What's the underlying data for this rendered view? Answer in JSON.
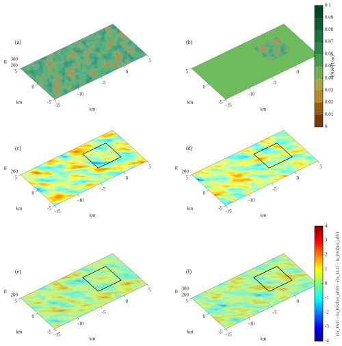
{
  "panels": [
    {
      "label": "(a)",
      "z_label": "m",
      "z_ticks": [
        "300",
        "200"
      ],
      "x_label": "km",
      "x_ticks": [
        "-15",
        "-10",
        "-5",
        "0",
        "5"
      ],
      "y_label": "km",
      "y_ticks": [
        "5",
        "0",
        "-5"
      ]
    },
    {
      "label": "(b)",
      "x_label": "km",
      "x_ticks": [
        "-15",
        "-10",
        "-5",
        "0",
        "5"
      ],
      "y_label": "km",
      "y_ticks": [
        "5",
        "0",
        "-5"
      ]
    },
    {
      "label": "(c)",
      "z_label": "m",
      "z_ticks": [
        "200"
      ],
      "x_label": "km",
      "x_ticks": [
        "-15",
        "-10",
        "-5",
        "0",
        "5"
      ],
      "y_label": "km",
      "y_ticks": [
        "5",
        "0",
        "-5"
      ]
    },
    {
      "label": "(d)",
      "z_label": "m",
      "z_ticks": [
        "200"
      ],
      "x_label": "km",
      "x_ticks": [
        "-15",
        "-10",
        "-5",
        "0",
        "5"
      ],
      "y_label": "km",
      "y_ticks": [
        "5",
        "0",
        "-5"
      ]
    },
    {
      "label": "(e)",
      "z_label": "m",
      "z_ticks": [
        "200"
      ],
      "x_label": "km",
      "x_ticks": [
        "-15",
        "-10",
        "-5",
        "0",
        "5"
      ],
      "y_label": "km",
      "y_ticks": [
        "5",
        "0",
        "-5"
      ]
    },
    {
      "label": "(f)",
      "z_label": "m",
      "z_ticks": [
        "300",
        "200"
      ],
      "x_label": "km",
      "x_ticks": [
        "-15",
        "-10",
        "-5",
        "0",
        "5"
      ],
      "y_label": "km",
      "y_ticks": [
        "5",
        "0",
        "-5"
      ]
    }
  ],
  "colorbars": [
    {
      "label": "PAW [1/m]",
      "ticks": [
        "0",
        "0.01",
        "0.02",
        "0.03",
        "0.04",
        "0.05",
        "0.06",
        "0.07",
        "0.08",
        "0.09",
        "0.1"
      ]
    },
    {
      "label": "(⟨u_ES3⟩ − ⟨u_ES2⟩)/σ_uES3 − (⟨u_LL1⟩ − ⟨u_ES1⟩)/σ_uES1",
      "ticks": [
        "-4",
        "-3",
        "-2",
        "-1",
        "0",
        "1",
        "2",
        "3",
        "4"
      ]
    }
  ]
}
